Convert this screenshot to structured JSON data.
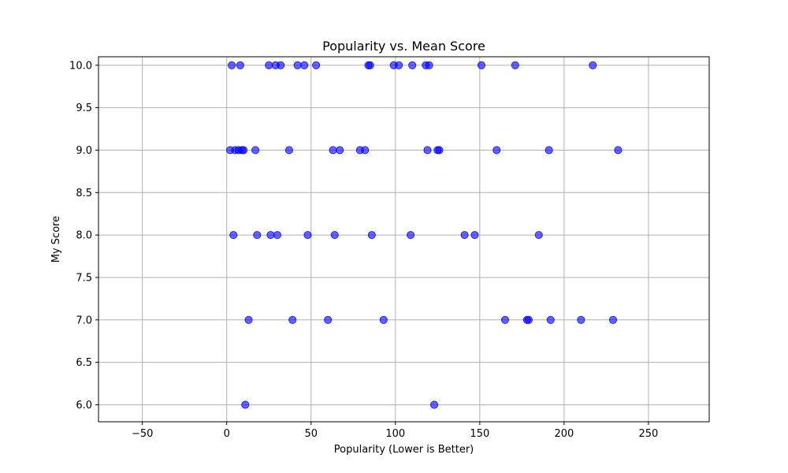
{
  "chart_data": {
    "type": "scatter",
    "title": "Popularity vs. Mean Score",
    "xlabel": "Popularity (Lower is Better)",
    "ylabel": "My Score",
    "xlim": [
      -76,
      286
    ],
    "ylim": [
      5.8,
      10.1
    ],
    "xticks": [
      -50,
      0,
      50,
      100,
      150,
      200,
      250
    ],
    "xtick_labels": [
      "−50",
      "0",
      "50",
      "100",
      "150",
      "200",
      "250"
    ],
    "yticks": [
      6.0,
      6.5,
      7.0,
      7.5,
      8.0,
      8.5,
      9.0,
      9.5,
      10.0
    ],
    "ytick_labels": [
      "6.0",
      "6.5",
      "7.0",
      "7.5",
      "8.0",
      "8.5",
      "9.0",
      "9.5",
      "10.0"
    ],
    "grid": true,
    "marker_color": "#0000ff",
    "marker_alpha": 0.6,
    "points": [
      {
        "x": 3,
        "y": 10
      },
      {
        "x": 8,
        "y": 10
      },
      {
        "x": 25,
        "y": 10
      },
      {
        "x": 29,
        "y": 10
      },
      {
        "x": 32,
        "y": 10
      },
      {
        "x": 42,
        "y": 10
      },
      {
        "x": 46,
        "y": 10
      },
      {
        "x": 53,
        "y": 10
      },
      {
        "x": 84,
        "y": 10
      },
      {
        "x": 85,
        "y": 10
      },
      {
        "x": 99,
        "y": 10
      },
      {
        "x": 102,
        "y": 10
      },
      {
        "x": 110,
        "y": 10
      },
      {
        "x": 118,
        "y": 10
      },
      {
        "x": 120,
        "y": 10
      },
      {
        "x": 151,
        "y": 10
      },
      {
        "x": 171,
        "y": 10
      },
      {
        "x": 217,
        "y": 10
      },
      {
        "x": 2,
        "y": 9
      },
      {
        "x": 5,
        "y": 9
      },
      {
        "x": 7,
        "y": 9
      },
      {
        "x": 9,
        "y": 9
      },
      {
        "x": 10,
        "y": 9
      },
      {
        "x": 17,
        "y": 9
      },
      {
        "x": 37,
        "y": 9
      },
      {
        "x": 63,
        "y": 9
      },
      {
        "x": 67,
        "y": 9
      },
      {
        "x": 79,
        "y": 9
      },
      {
        "x": 82,
        "y": 9
      },
      {
        "x": 119,
        "y": 9
      },
      {
        "x": 125,
        "y": 9
      },
      {
        "x": 126,
        "y": 9
      },
      {
        "x": 160,
        "y": 9
      },
      {
        "x": 191,
        "y": 9
      },
      {
        "x": 232,
        "y": 9
      },
      {
        "x": 4,
        "y": 8
      },
      {
        "x": 18,
        "y": 8
      },
      {
        "x": 26,
        "y": 8
      },
      {
        "x": 30,
        "y": 8
      },
      {
        "x": 48,
        "y": 8
      },
      {
        "x": 64,
        "y": 8
      },
      {
        "x": 86,
        "y": 8
      },
      {
        "x": 109,
        "y": 8
      },
      {
        "x": 141,
        "y": 8
      },
      {
        "x": 147,
        "y": 8
      },
      {
        "x": 185,
        "y": 8
      },
      {
        "x": 13,
        "y": 7
      },
      {
        "x": 39,
        "y": 7
      },
      {
        "x": 60,
        "y": 7
      },
      {
        "x": 93,
        "y": 7
      },
      {
        "x": 165,
        "y": 7
      },
      {
        "x": 178,
        "y": 7
      },
      {
        "x": 179,
        "y": 7
      },
      {
        "x": 192,
        "y": 7
      },
      {
        "x": 210,
        "y": 7
      },
      {
        "x": 229,
        "y": 7
      },
      {
        "x": 11,
        "y": 6
      },
      {
        "x": 123,
        "y": 6
      }
    ]
  }
}
